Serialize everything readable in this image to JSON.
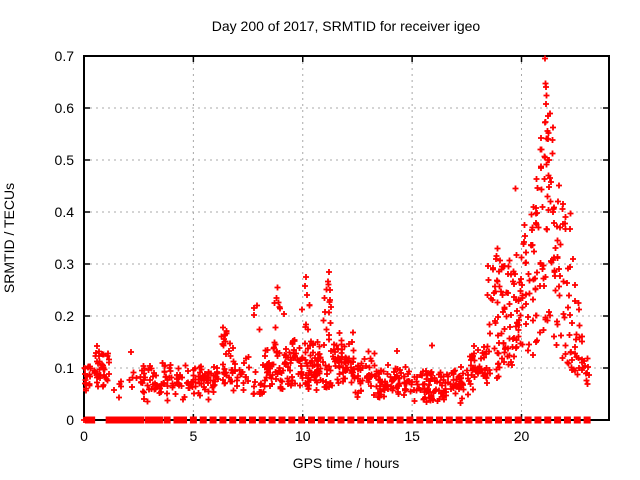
{
  "chart_data": {
    "type": "scatter",
    "title": "Day 200 of 2017, SRMTID for receiver igeo",
    "xlabel": "GPS time / hours",
    "ylabel": "SRMTID / TECUs",
    "xlim": [
      0,
      24
    ],
    "ylim": [
      0,
      0.7
    ],
    "xticks": [
      0,
      5,
      10,
      15,
      20
    ],
    "xtick_labels": [
      "0",
      "5",
      "10",
      "15",
      "20"
    ],
    "yticks": [
      0,
      0.1,
      0.2,
      0.3,
      0.4,
      0.5,
      0.6,
      0.7
    ],
    "ytick_labels": [
      "0",
      "0.1",
      "0.2",
      "0.3",
      "0.4",
      "0.5",
      "0.6",
      "0.7"
    ],
    "grid": "dashed, at major ticks",
    "legend_position": "none",
    "marker": {
      "shape": "plus",
      "color": "#ff0000",
      "size": 7
    },
    "zero_marker_shape": "filled-square",
    "grid_color": "#a8a8a8",
    "border_color": "#000000",
    "text_color": "#000000",
    "background_color": "#ffffff",
    "clusters": [
      {
        "x0": 0.02,
        "x1": 0.3,
        "y0": 0.045,
        "y1": 0.125,
        "n": 18,
        "d": "tri"
      },
      {
        "x0": 0.45,
        "x1": 0.9,
        "y0": 0.05,
        "y1": 0.15,
        "n": 32,
        "d": "tri"
      },
      {
        "x0": 0.85,
        "x1": 1.15,
        "y0": 0.05,
        "y1": 0.145,
        "n": 12,
        "d": "tri"
      },
      {
        "x0": 1.25,
        "x1": 2.5,
        "y0": 0.03,
        "y1": 0.1,
        "n": 10,
        "d": "tri"
      },
      {
        "x0": 2.55,
        "x1": 3.35,
        "y0": 0.025,
        "y1": 0.12,
        "n": 30,
        "d": "tri"
      },
      {
        "x0": 3.35,
        "x1": 4.2,
        "y0": 0.03,
        "y1": 0.115,
        "n": 28,
        "d": "tri"
      },
      {
        "x0": 4.2,
        "x1": 5.1,
        "y0": 0.035,
        "y1": 0.115,
        "n": 32,
        "d": "tri"
      },
      {
        "x0": 5.1,
        "x1": 6.2,
        "y0": 0.03,
        "y1": 0.12,
        "n": 45,
        "d": "tri"
      },
      {
        "x0": 6.2,
        "x1": 6.65,
        "y0": 0.05,
        "y1": 0.175,
        "n": 22,
        "d": "uni"
      },
      {
        "x0": 6.65,
        "x1": 7.55,
        "y0": 0.03,
        "y1": 0.15,
        "n": 30,
        "d": "tri"
      },
      {
        "x0": 7.7,
        "x1": 8.25,
        "y0": 0.05,
        "y1": 0.22,
        "n": 18,
        "d": "low"
      },
      {
        "x0": 8.25,
        "x1": 8.7,
        "y0": 0.05,
        "y1": 0.15,
        "n": 25,
        "d": "tri"
      },
      {
        "x0": 8.7,
        "x1": 9.15,
        "y0": 0.06,
        "y1": 0.25,
        "n": 28,
        "d": "low"
      },
      {
        "x0": 9.15,
        "x1": 9.95,
        "y0": 0.05,
        "y1": 0.165,
        "n": 45,
        "d": "tri"
      },
      {
        "x0": 9.95,
        "x1": 10.35,
        "y0": 0.06,
        "y1": 0.265,
        "n": 30,
        "d": "low"
      },
      {
        "x0": 10.35,
        "x1": 10.95,
        "y0": 0.05,
        "y1": 0.16,
        "n": 40,
        "d": "tri"
      },
      {
        "x0": 10.95,
        "x1": 11.35,
        "y0": 0.06,
        "y1": 0.27,
        "n": 30,
        "d": "low"
      },
      {
        "x0": 11.35,
        "x1": 12.3,
        "y0": 0.05,
        "y1": 0.17,
        "n": 55,
        "d": "tri"
      },
      {
        "x0": 12.3,
        "x1": 13.3,
        "y0": 0.04,
        "y1": 0.14,
        "n": 45,
        "d": "tri"
      },
      {
        "x0": 13.3,
        "x1": 14.9,
        "y0": 0.035,
        "y1": 0.11,
        "n": 70,
        "d": "tri"
      },
      {
        "x0": 14.9,
        "x1": 16.3,
        "y0": 0.03,
        "y1": 0.1,
        "n": 60,
        "d": "tri"
      },
      {
        "x0": 16.3,
        "x1": 17.6,
        "y0": 0.03,
        "y1": 0.105,
        "n": 55,
        "d": "tri"
      },
      {
        "x0": 17.6,
        "x1": 18.45,
        "y0": 0.05,
        "y1": 0.15,
        "n": 45,
        "d": "tri"
      },
      {
        "x0": 18.45,
        "x1": 19.0,
        "y0": 0.08,
        "y1": 0.33,
        "n": 35,
        "d": "uni"
      },
      {
        "x0": 19.0,
        "x1": 19.55,
        "y0": 0.1,
        "y1": 0.31,
        "n": 35,
        "d": "uni"
      },
      {
        "x0": 19.55,
        "x1": 20.05,
        "y0": 0.1,
        "y1": 0.33,
        "n": 35,
        "d": "uni"
      },
      {
        "x0": 20.05,
        "x1": 20.65,
        "y0": 0.12,
        "y1": 0.38,
        "n": 30,
        "d": "uni"
      },
      {
        "x0": 20.65,
        "x1": 21.05,
        "y0": 0.15,
        "y1": 0.55,
        "n": 28,
        "d": "uni"
      },
      {
        "x0": 21.05,
        "x1": 21.45,
        "y0": 0.18,
        "y1": 0.66,
        "n": 30,
        "d": "uni"
      },
      {
        "x0": 21.45,
        "x1": 21.85,
        "y0": 0.12,
        "y1": 0.46,
        "n": 25,
        "d": "uni"
      },
      {
        "x0": 21.85,
        "x1": 22.25,
        "y0": 0.1,
        "y1": 0.42,
        "n": 22,
        "d": "uni"
      },
      {
        "x0": 22.25,
        "x1": 22.7,
        "y0": 0.07,
        "y1": 0.26,
        "n": 20,
        "d": "uni"
      },
      {
        "x0": 22.7,
        "x1": 23.1,
        "y0": 0.05,
        "y1": 0.17,
        "n": 15,
        "d": "tri"
      }
    ],
    "outliers": [
      [
        0.0,
        0.0
      ],
      [
        21.07,
        0.695
      ],
      [
        21.1,
        0.647
      ],
      [
        21.12,
        0.64
      ],
      [
        21.15,
        0.624
      ],
      [
        21.13,
        0.608
      ],
      [
        21.2,
        0.585
      ],
      [
        21.08,
        0.572
      ],
      [
        21.18,
        0.556
      ],
      [
        21.22,
        0.54
      ],
      [
        20.92,
        0.52
      ],
      [
        21.26,
        0.5
      ],
      [
        20.88,
        0.485
      ],
      [
        21.3,
        0.465
      ],
      [
        19.72,
        0.445
      ],
      [
        20.55,
        0.41
      ],
      [
        20.45,
        0.395
      ],
      [
        21.9,
        0.415
      ],
      [
        22.0,
        0.39
      ],
      [
        21.75,
        0.37
      ],
      [
        22.35,
        0.31
      ],
      [
        22.45,
        0.26
      ],
      [
        18.9,
        0.33
      ],
      [
        18.85,
        0.315
      ],
      [
        11.2,
        0.285
      ],
      [
        11.15,
        0.266
      ],
      [
        10.15,
        0.275
      ],
      [
        10.1,
        0.258
      ],
      [
        8.85,
        0.255
      ],
      [
        8.8,
        0.235
      ],
      [
        7.9,
        0.22
      ],
      [
        6.35,
        0.178
      ],
      [
        12.3,
        0.168
      ],
      [
        15.9,
        0.143
      ],
      [
        14.3,
        0.133
      ],
      [
        2.15,
        0.131
      ]
    ],
    "zero_marker_hours": [
      0.2,
      0.35,
      1.15,
      1.25,
      1.55,
      1.7,
      1.9,
      2.15,
      2.3,
      2.45,
      2.6,
      2.95,
      3.05,
      3.3,
      3.45,
      3.8,
      4.25,
      4.55,
      5.0,
      5.45,
      5.9,
      6.35,
      6.8,
      7.25,
      7.7,
      8.15,
      8.6,
      9.05,
      9.5,
      9.95,
      10.4,
      10.85,
      11.3,
      11.75,
      12.2,
      12.65,
      13.1,
      13.55,
      14.0,
      14.45,
      14.9,
      15.35,
      15.8,
      16.25,
      16.7,
      17.15,
      17.6,
      18.05,
      18.5,
      18.95,
      19.4,
      19.85,
      20.3,
      20.75,
      21.2,
      21.65,
      22.1,
      22.55,
      23.0
    ]
  }
}
